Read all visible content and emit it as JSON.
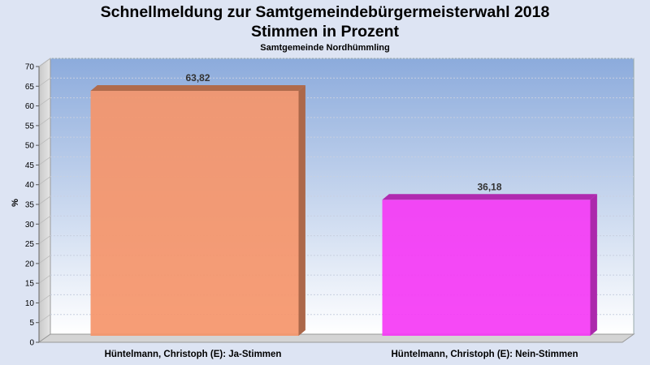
{
  "chart_data": {
    "type": "bar",
    "title_line1": "Schnellmeldung zur Samtgemeindebürgermeisterwahl 2018",
    "title_line2": "Stimmen in Prozent",
    "subtitle": "Samtgemeinde Nordhümmling",
    "ylabel": "%",
    "ylim": [
      0,
      70
    ],
    "ytick_step": 5,
    "categories": [
      "Hüntelmann, Christoph (E): Ja-Stimmen",
      "Hüntelmann, Christoph (E): Nein-Stimmen"
    ],
    "values": [
      63.82,
      36.18
    ],
    "data_labels": [
      "63,82",
      "36,18"
    ],
    "colors": [
      "#f5956a",
      "#f53af5"
    ],
    "grid": true,
    "legend": "none"
  }
}
